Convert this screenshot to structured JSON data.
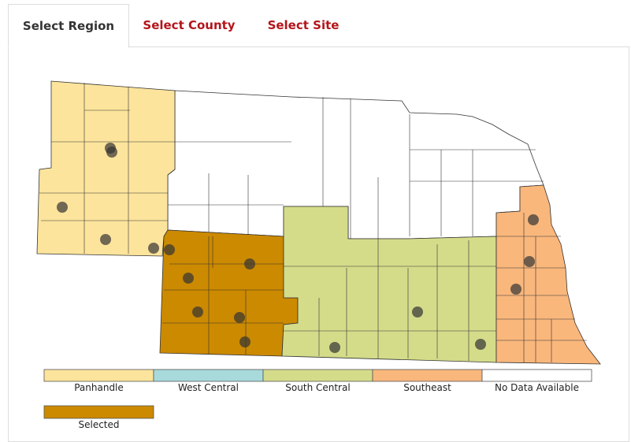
{
  "tabs": [
    {
      "label": "Select Region",
      "active": true
    },
    {
      "label": "Select County",
      "active": false
    },
    {
      "label": "Select Site",
      "active": false
    }
  ],
  "legend": [
    {
      "label": "Panhandle",
      "color": "#fde49c"
    },
    {
      "label": "West Central",
      "color": "#a8dadc"
    },
    {
      "label": "South Central",
      "color": "#d4dc8a"
    },
    {
      "label": "Southeast",
      "color": "#f9b77c"
    },
    {
      "label": "No Data Available",
      "color": "#ffffff"
    }
  ],
  "selected": {
    "label": "Selected",
    "color": "#cc8a00"
  }
}
